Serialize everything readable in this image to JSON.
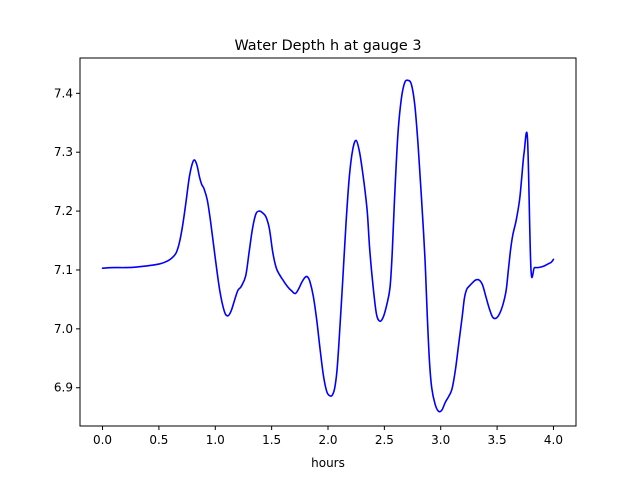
{
  "chart_data": {
    "type": "line",
    "title": "Water Depth h at gauge 3",
    "xlabel": "hours",
    "ylabel": "",
    "xlim": [
      -0.2,
      4.2
    ],
    "ylim": [
      6.835,
      7.46
    ],
    "xticks": [
      0.0,
      0.5,
      1.0,
      1.5,
      2.0,
      2.5,
      3.0,
      3.5,
      4.0
    ],
    "xtick_labels": [
      "0.0",
      "0.5",
      "1.0",
      "1.5",
      "2.0",
      "2.5",
      "3.0",
      "3.5",
      "4.0"
    ],
    "yticks": [
      6.9,
      7.0,
      7.1,
      7.2,
      7.3,
      7.4
    ],
    "ytick_labels": [
      "6.9",
      "7.0",
      "7.1",
      "7.2",
      "7.3",
      "7.4"
    ],
    "grid": false,
    "series": [
      {
        "color": "#0000ff",
        "x": [
          0.0,
          0.1,
          0.2,
          0.3,
          0.4,
          0.5,
          0.55,
          0.6,
          0.65,
          0.68,
          0.71,
          0.74,
          0.77,
          0.8,
          0.82,
          0.84,
          0.86,
          0.88,
          0.9,
          0.93,
          0.96,
          1.0,
          1.04,
          1.08,
          1.11,
          1.14,
          1.17,
          1.2,
          1.23,
          1.27,
          1.3,
          1.33,
          1.36,
          1.39,
          1.42,
          1.45,
          1.48,
          1.51,
          1.54,
          1.57,
          1.6,
          1.64,
          1.68,
          1.71,
          1.74,
          1.77,
          1.8,
          1.82,
          1.84,
          1.87,
          1.9,
          1.93,
          1.96,
          1.99,
          2.02,
          2.04,
          2.06,
          2.08,
          2.1,
          2.13,
          2.16,
          2.19,
          2.22,
          2.25,
          2.28,
          2.31,
          2.33,
          2.35,
          2.37,
          2.4,
          2.43,
          2.46,
          2.49,
          2.52,
          2.55,
          2.57,
          2.59,
          2.62,
          2.65,
          2.68,
          2.71,
          2.74,
          2.77,
          2.8,
          2.83,
          2.86,
          2.88,
          2.9,
          2.92,
          2.95,
          2.98,
          3.01,
          3.04,
          3.07,
          3.1,
          3.13,
          3.16,
          3.19,
          3.21,
          3.23,
          3.25,
          3.28,
          3.31,
          3.34,
          3.37,
          3.4,
          3.43,
          3.46,
          3.49,
          3.52,
          3.55,
          3.58,
          3.6,
          3.62,
          3.64,
          3.67,
          3.7,
          3.72,
          3.74,
          3.77,
          3.8,
          3.83,
          3.86,
          3.89,
          3.92,
          3.95,
          3.98,
          4.0
        ],
        "y": [
          7.103,
          7.104,
          7.104,
          7.105,
          7.107,
          7.11,
          7.113,
          7.118,
          7.128,
          7.145,
          7.175,
          7.215,
          7.258,
          7.283,
          7.286,
          7.276,
          7.258,
          7.245,
          7.238,
          7.218,
          7.18,
          7.12,
          7.065,
          7.03,
          7.022,
          7.03,
          7.048,
          7.065,
          7.072,
          7.09,
          7.13,
          7.17,
          7.195,
          7.2,
          7.197,
          7.19,
          7.17,
          7.13,
          7.104,
          7.092,
          7.083,
          7.072,
          7.064,
          7.06,
          7.068,
          7.08,
          7.088,
          7.088,
          7.08,
          7.055,
          7.015,
          6.965,
          6.92,
          6.893,
          6.886,
          6.888,
          6.9,
          6.93,
          6.985,
          7.08,
          7.18,
          7.26,
          7.305,
          7.32,
          7.3,
          7.262,
          7.232,
          7.195,
          7.135,
          7.072,
          7.025,
          7.013,
          7.02,
          7.04,
          7.07,
          7.13,
          7.22,
          7.33,
          7.39,
          7.418,
          7.422,
          7.415,
          7.38,
          7.31,
          7.22,
          7.12,
          7.025,
          6.945,
          6.9,
          6.872,
          6.86,
          6.862,
          6.875,
          6.885,
          6.898,
          6.93,
          6.975,
          7.02,
          7.052,
          7.067,
          7.072,
          7.078,
          7.083,
          7.083,
          7.075,
          7.055,
          7.035,
          7.02,
          7.018,
          7.025,
          7.04,
          7.065,
          7.1,
          7.135,
          7.16,
          7.185,
          7.22,
          7.26,
          7.3,
          7.322,
          7.103,
          7.104,
          7.104,
          7.105,
          7.107,
          7.11,
          7.113,
          7.118
        ]
      }
    ]
  }
}
